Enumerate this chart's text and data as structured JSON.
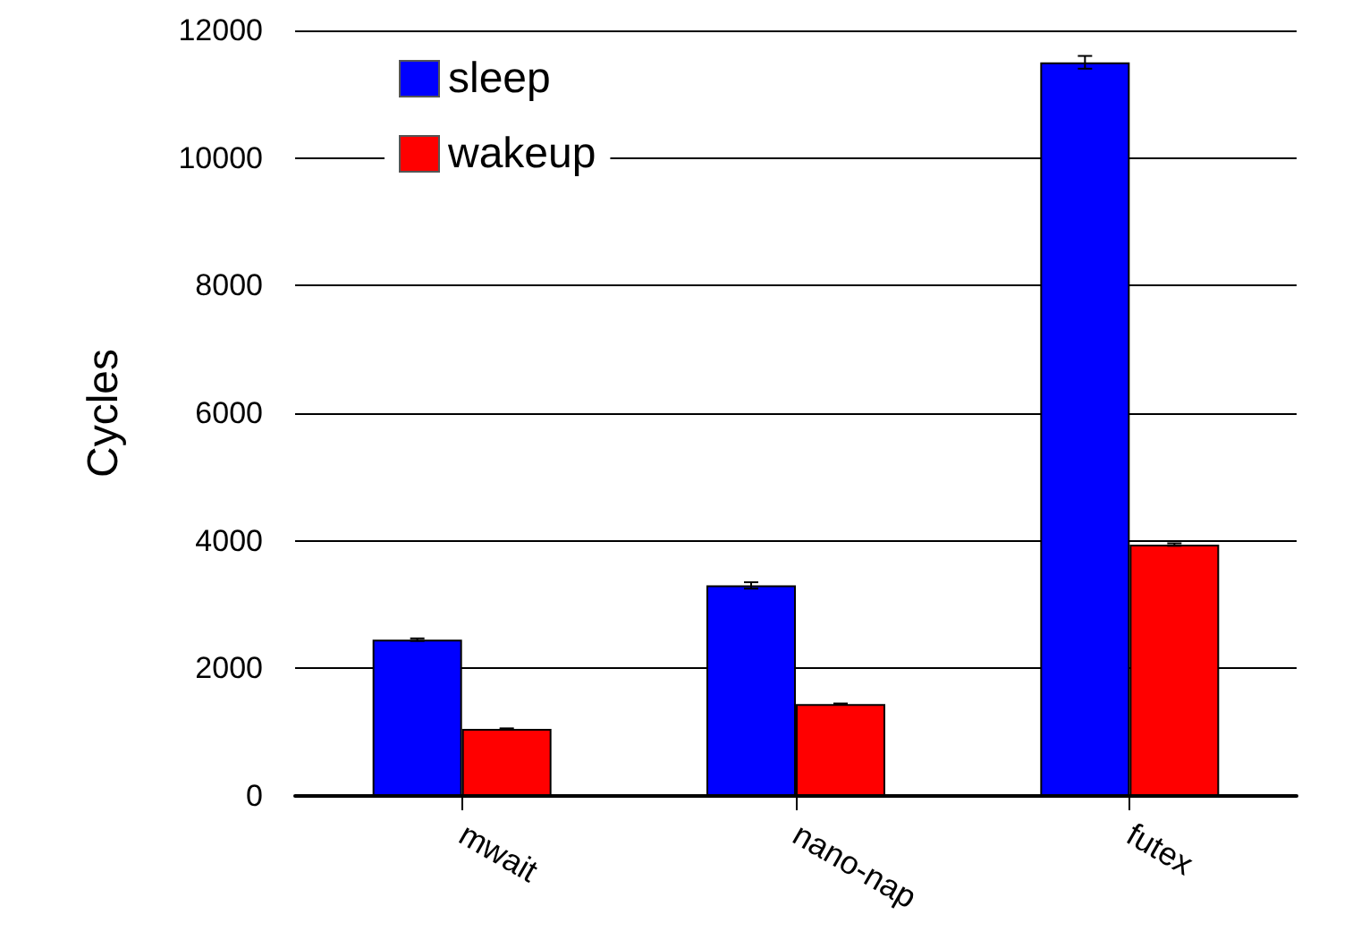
{
  "chart_data": {
    "type": "bar",
    "ylabel": "Cycles",
    "categories": [
      "mwait",
      "nano-nap",
      "futex"
    ],
    "series": [
      {
        "name": "sleep",
        "color": "#0000ff",
        "values": [
          2450,
          3300,
          11500
        ],
        "errors": [
          20,
          50,
          100
        ]
      },
      {
        "name": "wakeup",
        "color": "#ff0000",
        "values": [
          1050,
          1440,
          3940
        ],
        "errors": [
          10,
          10,
          20
        ]
      }
    ],
    "ylim": [
      0,
      12000
    ],
    "yticks": [
      0,
      2000,
      4000,
      6000,
      8000,
      10000,
      12000
    ],
    "grid": "y",
    "legend": "top left"
  }
}
